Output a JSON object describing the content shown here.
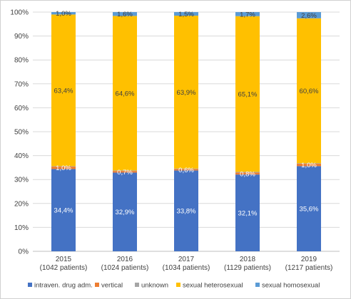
{
  "chart_data": {
    "type": "bar",
    "stacked": true,
    "normalized": true,
    "categories": [
      [
        "2015",
        "(1042  patients)"
      ],
      [
        "2016",
        "(1024 patients)"
      ],
      [
        "2017",
        "(1034 patients)"
      ],
      [
        "2018",
        "(1129 patients)"
      ],
      [
        "2019",
        "(1217 patients)"
      ]
    ],
    "series": [
      {
        "name": "intraven. drug adm.",
        "color": "#4472C4",
        "label_color": "light",
        "values": [
          34.4,
          32.9,
          33.8,
          32.1,
          35.6
        ],
        "labels": [
          "34,4%",
          "32,9%",
          "33,8%",
          "32,1%",
          "35,6%"
        ]
      },
      {
        "name": "vertical",
        "color": "#ED7D31",
        "label_color": "light",
        "values": [
          1.0,
          0.7,
          0.6,
          0.8,
          1.0
        ],
        "labels": [
          "1,0%",
          "0,7%",
          "0,6%",
          "0,8%",
          "1,0%"
        ]
      },
      {
        "name": "unknown",
        "color": "#A5A5A5",
        "label_color": "none",
        "values": [
          0.2,
          0.2,
          0.2,
          0.3,
          0.2
        ],
        "labels": []
      },
      {
        "name": "sexual heterosexual",
        "color": "#FFC000",
        "label_color": "dark",
        "values": [
          63.4,
          64.6,
          63.9,
          65.1,
          60.6
        ],
        "labels": [
          "63,4%",
          "64,6%",
          "63,9%",
          "65,1%",
          "60,6%"
        ]
      },
      {
        "name": "sexual homosexual",
        "color": "#5B9BD5",
        "label_color": "dark",
        "values": [
          1.0,
          1.6,
          1.5,
          1.7,
          2.6
        ],
        "labels": [
          "1,0%",
          "1,6%",
          "1,5%",
          "1,7%",
          "2,6%"
        ]
      }
    ],
    "yticks": [
      "0%",
      "10%",
      "20%",
      "30%",
      "40%",
      "50%",
      "60%",
      "70%",
      "80%",
      "90%",
      "100%"
    ],
    "ylim": [
      0,
      100
    ],
    "grid": true,
    "legend_position": "bottom",
    "title": "",
    "xlabel": "",
    "ylabel": ""
  }
}
